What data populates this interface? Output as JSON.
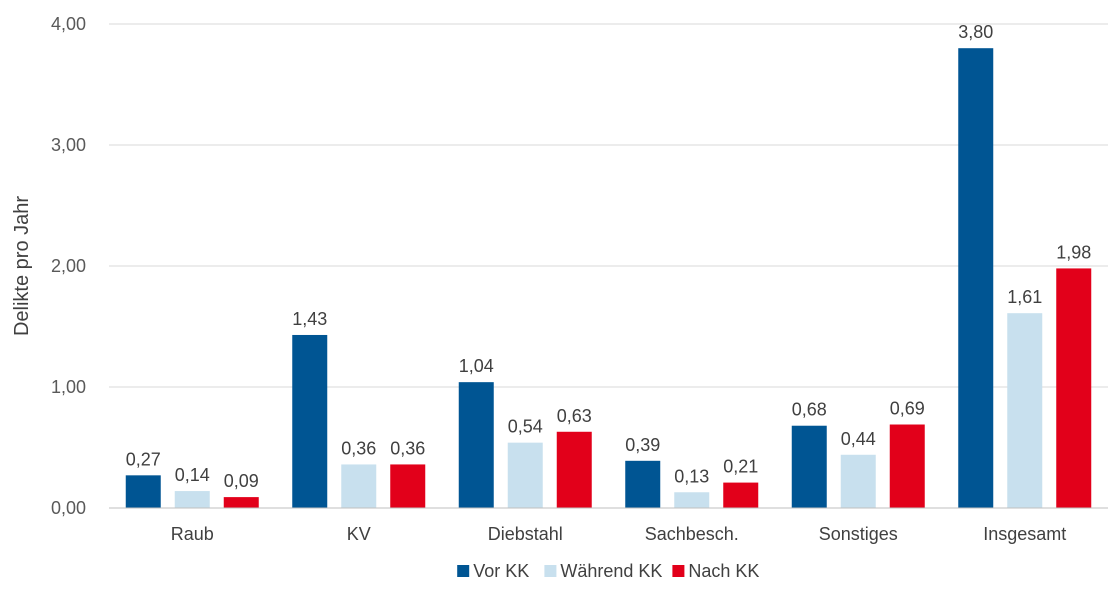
{
  "chart_data": {
    "type": "bar",
    "ylabel": "Delikte pro Jahr",
    "ylim": [
      0,
      4
    ],
    "yticks": [
      "0,00",
      "1,00",
      "2,00",
      "3,00",
      "4,00"
    ],
    "grid": true,
    "legend_position": "bottom",
    "categories": [
      "Raub",
      "KV",
      "Diebstahl",
      "Sachbesch.",
      "Sonstiges",
      "Insgesamt"
    ],
    "series": [
      {
        "name": "Vor KK",
        "color": "#005593",
        "values": [
          0.27,
          1.43,
          1.04,
          0.39,
          0.68,
          3.8
        ],
        "labels": [
          "0,27",
          "1,43",
          "1,04",
          "0,39",
          "0,68",
          "3,80"
        ]
      },
      {
        "name": "Während KK",
        "color": "#c8e0ee",
        "values": [
          0.14,
          0.36,
          0.54,
          0.13,
          0.44,
          1.61
        ],
        "labels": [
          "0,14",
          "0,36",
          "0,54",
          "0,13",
          "0,44",
          "1,61"
        ]
      },
      {
        "name": "Nach KK",
        "color": "#e2001a",
        "values": [
          0.09,
          0.36,
          0.63,
          0.21,
          0.69,
          1.98
        ],
        "labels": [
          "0,09",
          "0,36",
          "0,63",
          "0,21",
          "0,69",
          "1,98"
        ]
      }
    ]
  }
}
